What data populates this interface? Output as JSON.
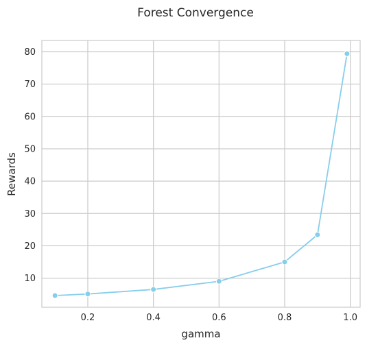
{
  "chart_data": {
    "type": "line",
    "title": "Forest Convergence",
    "xlabel": "gamma",
    "ylabel": "Rewards",
    "x": [
      0.1,
      0.2,
      0.4,
      0.6,
      0.8,
      0.9,
      0.99
    ],
    "series": [
      {
        "values": [
          4.6,
          5.1,
          6.5,
          9.0,
          15.0,
          23.4,
          79.4
        ],
        "color": "#87CEEB",
        "marker": "circle"
      }
    ],
    "xlim": [
      0.06,
      1.03
    ],
    "ylim": [
      1.0,
      83.5
    ],
    "xticks": [
      0.2,
      0.4,
      0.6,
      0.8,
      1.0
    ],
    "xtick_labels": [
      "0.2",
      "0.4",
      "0.6",
      "0.8",
      "1.0"
    ],
    "yticks": [
      10,
      20,
      30,
      40,
      50,
      60,
      70,
      80
    ],
    "ytick_labels": [
      "10",
      "20",
      "30",
      "40",
      "50",
      "60",
      "70",
      "80"
    ],
    "grid": true,
    "legend": "none",
    "colors": {
      "line": "#87CEEB",
      "grid": "#cccccc",
      "frame": "#cccccc",
      "text": "#262626"
    }
  }
}
